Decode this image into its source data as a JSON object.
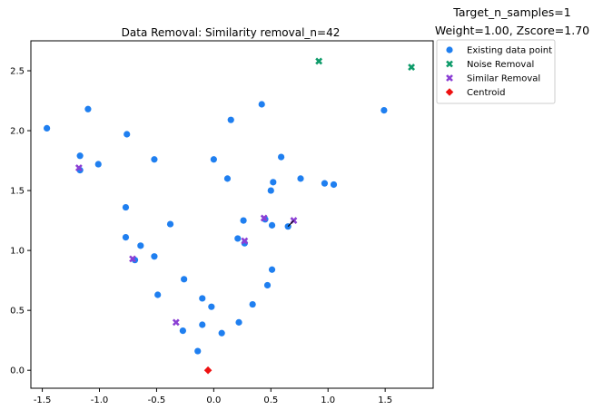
{
  "header": {
    "line1": "Target_n_samples=1",
    "line2": "Weight=1.00, Zscore=1.70"
  },
  "chart_data": {
    "type": "scatter",
    "title": "Data Removal: Similarity removal_n=42",
    "xlabel": "",
    "ylabel": "",
    "xlim": [
      -1.6,
      1.92
    ],
    "ylim": [
      -0.15,
      2.75
    ],
    "xticks": [
      -1.5,
      -1.0,
      -0.5,
      0.0,
      0.5,
      1.0,
      1.5
    ],
    "xtick_labels": [
      "-1.5",
      "-1.0",
      "-0.5",
      "0.0",
      "0.5",
      "1.0",
      "1.5"
    ],
    "yticks": [
      0.0,
      0.5,
      1.0,
      1.5,
      2.0,
      2.5
    ],
    "ytick_labels": [
      "0.0",
      "0.5",
      "1.0",
      "1.5",
      "2.0",
      "2.5"
    ],
    "grid": false,
    "legend_position": "outside-top-right",
    "series": [
      {
        "name": "Existing data point",
        "marker": "circle",
        "color": "#1f7ff0",
        "points": [
          [
            -1.46,
            2.02
          ],
          [
            -1.1,
            2.18
          ],
          [
            -0.76,
            1.97
          ],
          [
            -1.17,
            1.79
          ],
          [
            -1.01,
            1.72
          ],
          [
            -1.17,
            1.67
          ],
          [
            -0.52,
            1.76
          ],
          [
            0.0,
            1.76
          ],
          [
            0.15,
            2.09
          ],
          [
            0.42,
            2.22
          ],
          [
            1.49,
            2.17
          ],
          [
            0.59,
            1.78
          ],
          [
            0.12,
            1.6
          ],
          [
            0.52,
            1.57
          ],
          [
            0.5,
            1.5
          ],
          [
            0.76,
            1.6
          ],
          [
            0.97,
            1.56
          ],
          [
            1.05,
            1.55
          ],
          [
            -0.77,
            1.36
          ],
          [
            -0.38,
            1.22
          ],
          [
            0.26,
            1.25
          ],
          [
            0.45,
            1.26
          ],
          [
            0.51,
            1.21
          ],
          [
            0.65,
            1.2
          ],
          [
            -0.77,
            1.11
          ],
          [
            0.21,
            1.1
          ],
          [
            0.27,
            1.06
          ],
          [
            -0.64,
            1.04
          ],
          [
            -0.52,
            0.95
          ],
          [
            -0.69,
            0.92
          ],
          [
            0.51,
            0.84
          ],
          [
            -0.26,
            0.76
          ],
          [
            0.47,
            0.71
          ],
          [
            -0.49,
            0.63
          ],
          [
            -0.1,
            0.6
          ],
          [
            -0.02,
            0.53
          ],
          [
            0.34,
            0.55
          ],
          [
            0.22,
            0.4
          ],
          [
            -0.1,
            0.38
          ],
          [
            -0.27,
            0.33
          ],
          [
            0.07,
            0.31
          ],
          [
            -0.14,
            0.16
          ]
        ]
      },
      {
        "name": "Noise Removal",
        "marker": "x",
        "color": "#0e9b6a",
        "points": [
          [
            0.92,
            2.58
          ],
          [
            1.73,
            2.53
          ]
        ]
      },
      {
        "name": "Similar Removal",
        "marker": "x",
        "color": "#8b3fd4",
        "points": [
          [
            -1.18,
            1.69
          ],
          [
            0.44,
            1.27
          ],
          [
            0.7,
            1.25
          ],
          [
            0.27,
            1.08
          ],
          [
            -0.71,
            0.93
          ],
          [
            -0.33,
            0.4
          ]
        ]
      },
      {
        "name": "Centroid",
        "marker": "diamond",
        "color": "#ee1111",
        "points": [
          [
            -0.05,
            0.0
          ]
        ]
      }
    ],
    "lines": [
      {
        "from": [
          0.65,
          1.2
        ],
        "to": [
          0.7,
          1.25
        ],
        "color": "#000000"
      }
    ]
  }
}
